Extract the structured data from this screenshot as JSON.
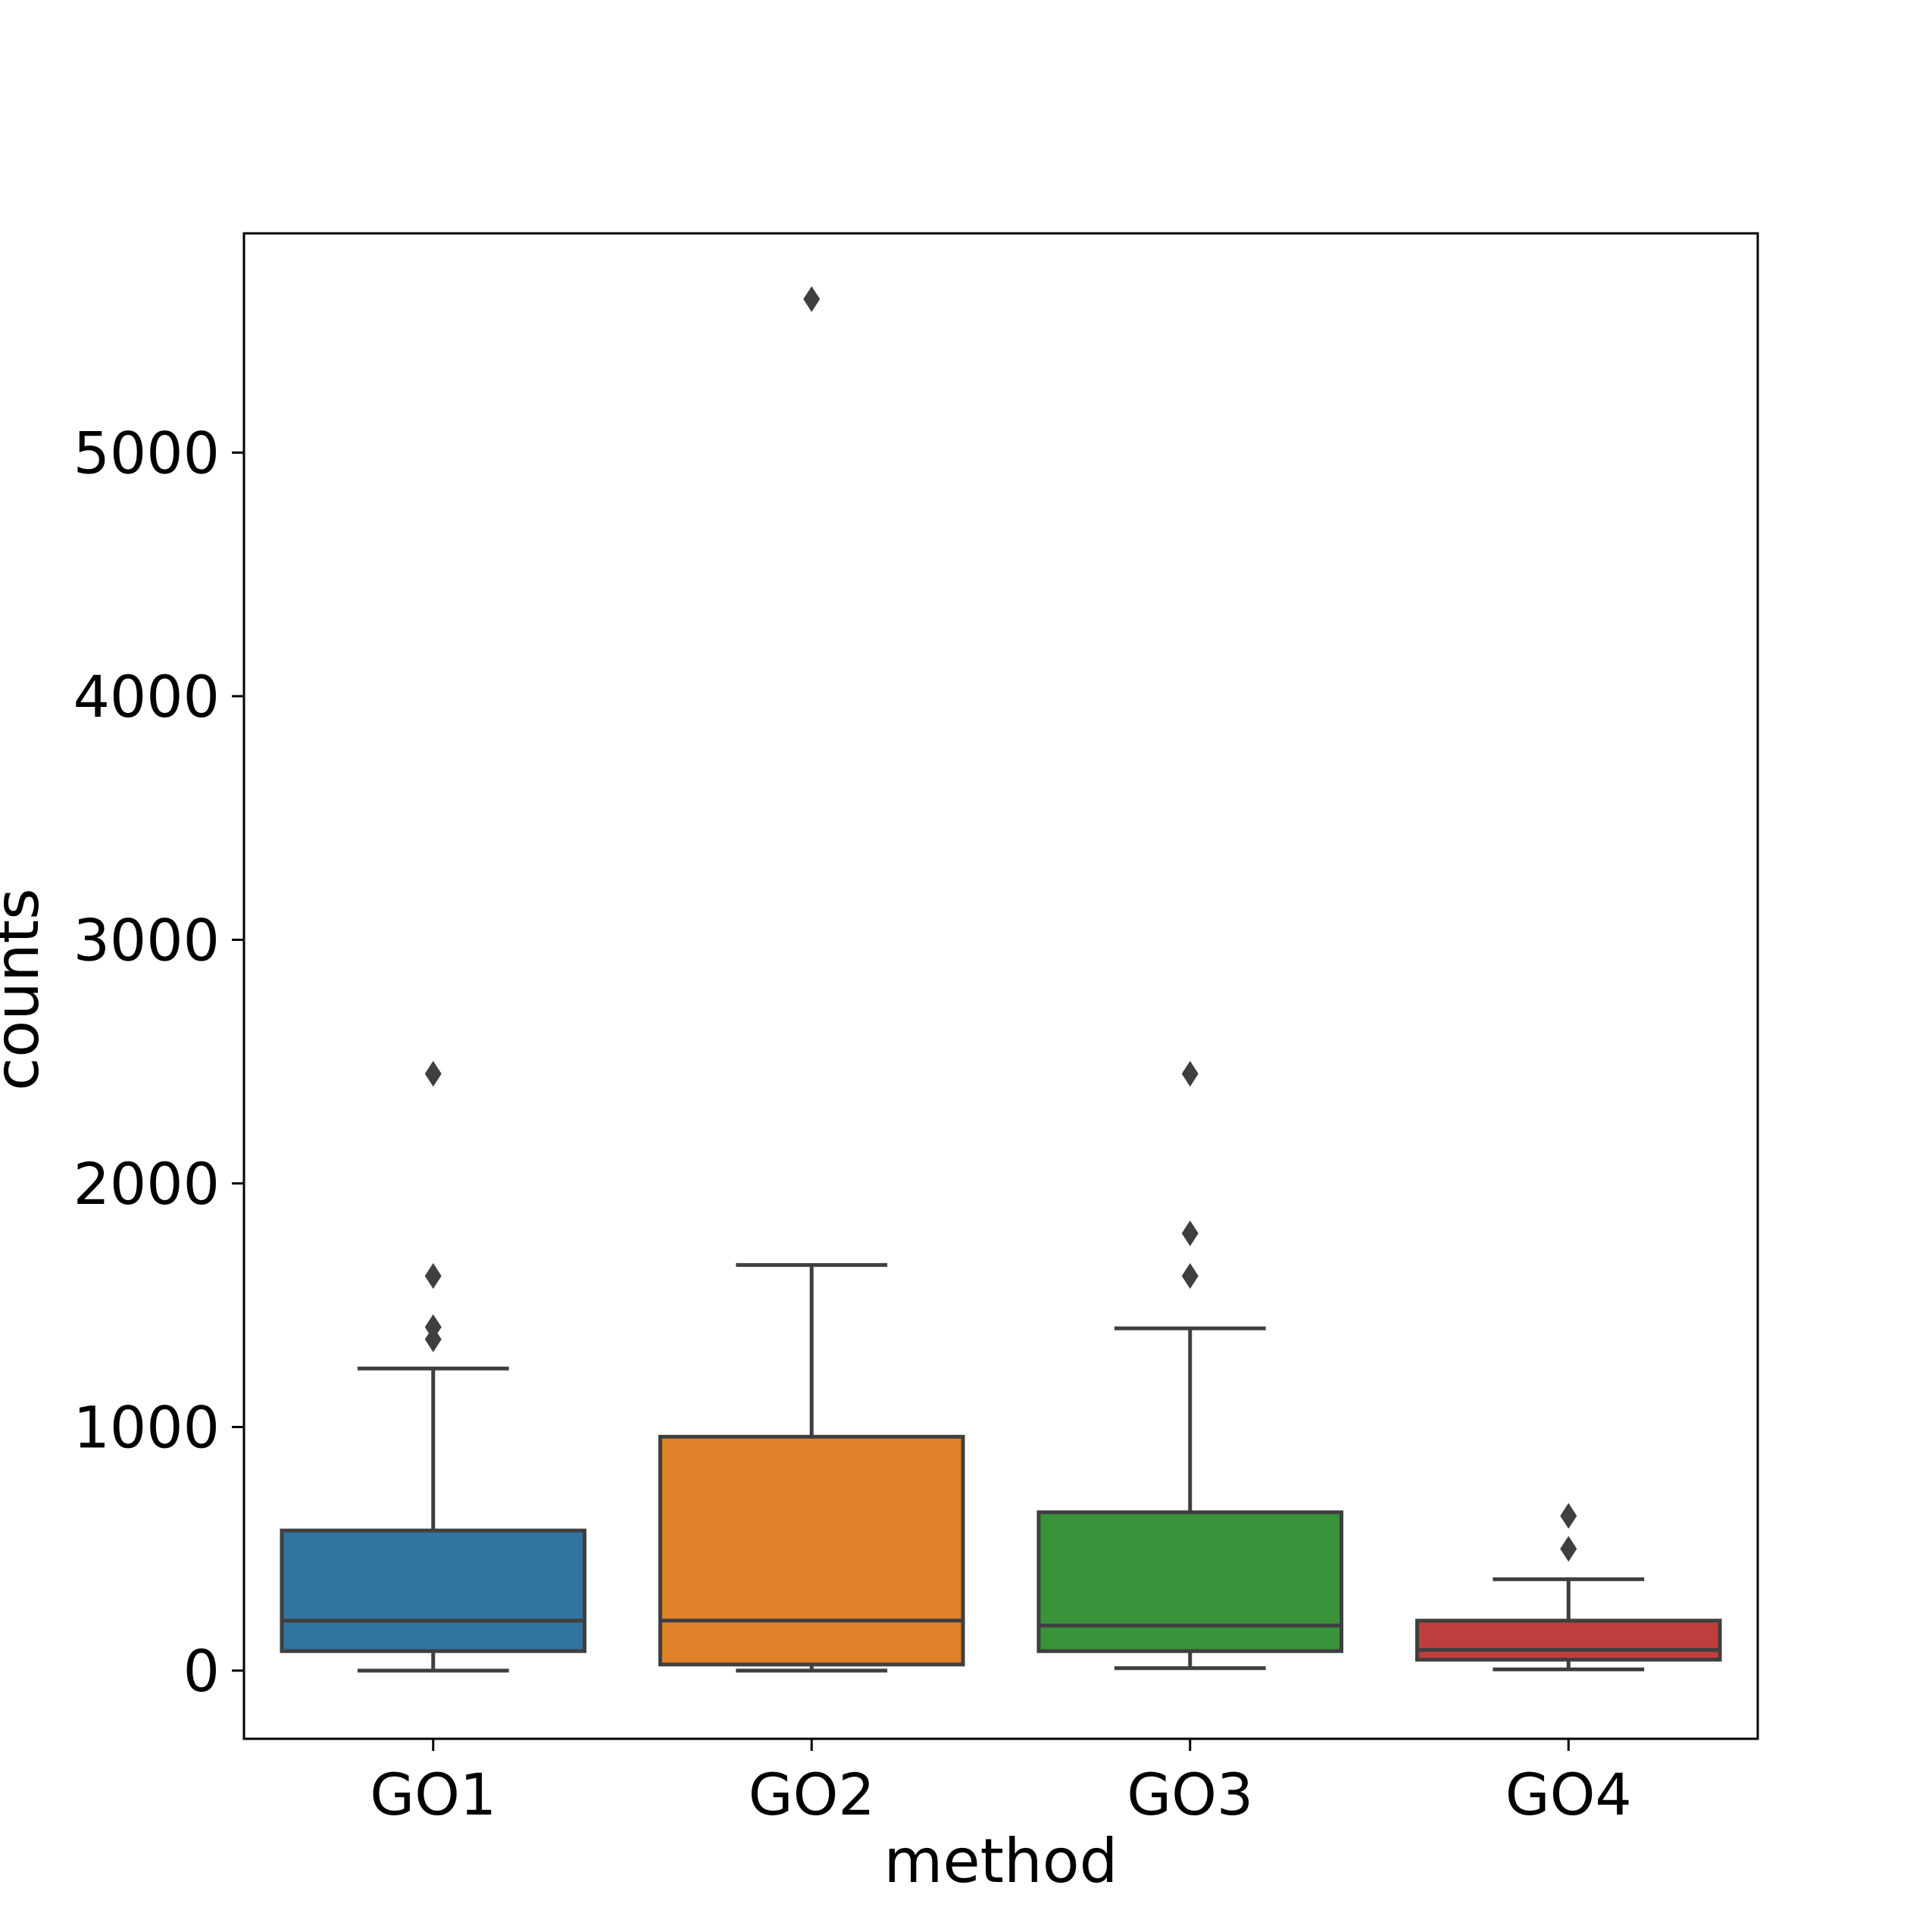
{
  "chart_data": {
    "type": "box",
    "title": "",
    "xlabel": "method",
    "ylabel": "counts",
    "ylim": [
      -280,
      5900
    ],
    "yticks": [
      0,
      1000,
      2000,
      3000,
      4000,
      5000
    ],
    "ytick_labels": [
      "0",
      "1000",
      "2000",
      "3000",
      "4000",
      "5000"
    ],
    "grid": false,
    "legend": "none",
    "categories": [
      "GO1",
      "GO2",
      "GO3",
      "GO4"
    ],
    "boxes": [
      {
        "category": "GO1",
        "color": "#3274a1",
        "whisker_low": 0,
        "q1": 80,
        "median": 205,
        "q3": 575,
        "whisker_high": 1240,
        "outliers": [
          1360,
          1410,
          1620,
          2450
        ]
      },
      {
        "category": "GO2",
        "color": "#e1812c",
        "whisker_low": 0,
        "q1": 25,
        "median": 205,
        "q3": 960,
        "whisker_high": 1665,
        "outliers": [
          5630
        ]
      },
      {
        "category": "GO3",
        "color": "#3a923a",
        "whisker_low": 10,
        "q1": 80,
        "median": 185,
        "q3": 650,
        "whisker_high": 1405,
        "outliers": [
          1620,
          1795,
          2450
        ]
      },
      {
        "category": "GO4",
        "color": "#c03d3e",
        "whisker_low": 5,
        "q1": 45,
        "median": 85,
        "q3": 205,
        "whisker_high": 375,
        "outliers": [
          500,
          635
        ]
      }
    ]
  }
}
